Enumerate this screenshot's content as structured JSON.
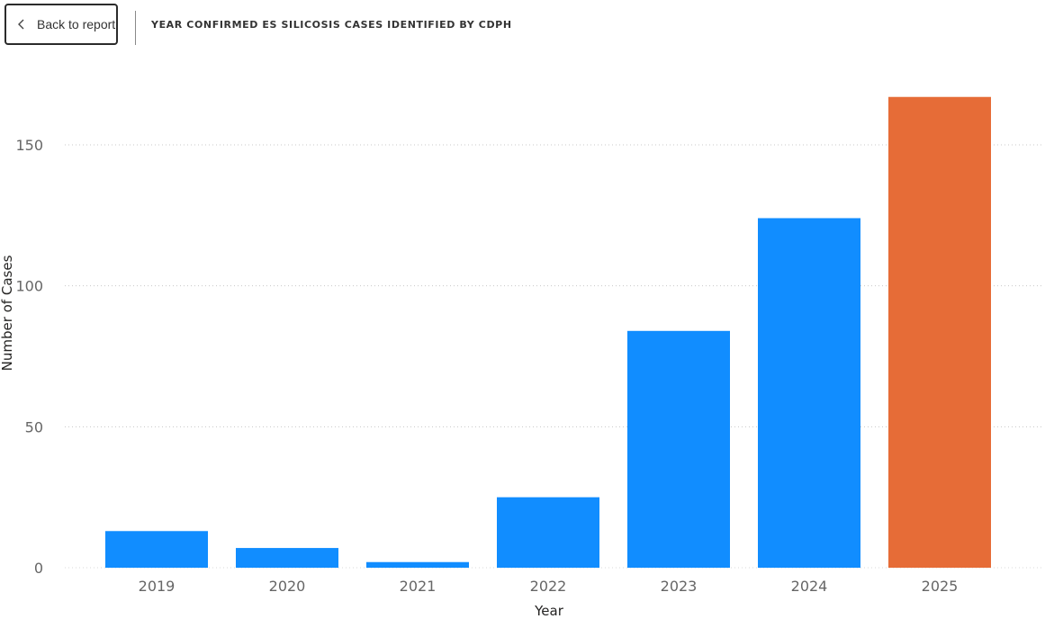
{
  "header": {
    "back_label": "Back to report",
    "back_icon": "chevron-left-icon",
    "title": "YEAR CONFIRMED ES SILICOSIS CASES IDENTIFIED BY CDPH"
  },
  "chart_data": {
    "type": "bar",
    "categories": [
      "2019",
      "2020",
      "2021",
      "2022",
      "2023",
      "2024",
      "2025"
    ],
    "values": [
      13,
      7,
      2,
      25,
      84,
      124,
      167
    ],
    "bar_colors": [
      "#118DFF",
      "#118DFF",
      "#118DFF",
      "#118DFF",
      "#118DFF",
      "#118DFF",
      "#E66C37"
    ],
    "xlabel": "Year",
    "ylabel": "Number of Cases",
    "ylim": [
      0,
      175
    ],
    "yticks": [
      0,
      50,
      100,
      150
    ],
    "grid": true
  }
}
